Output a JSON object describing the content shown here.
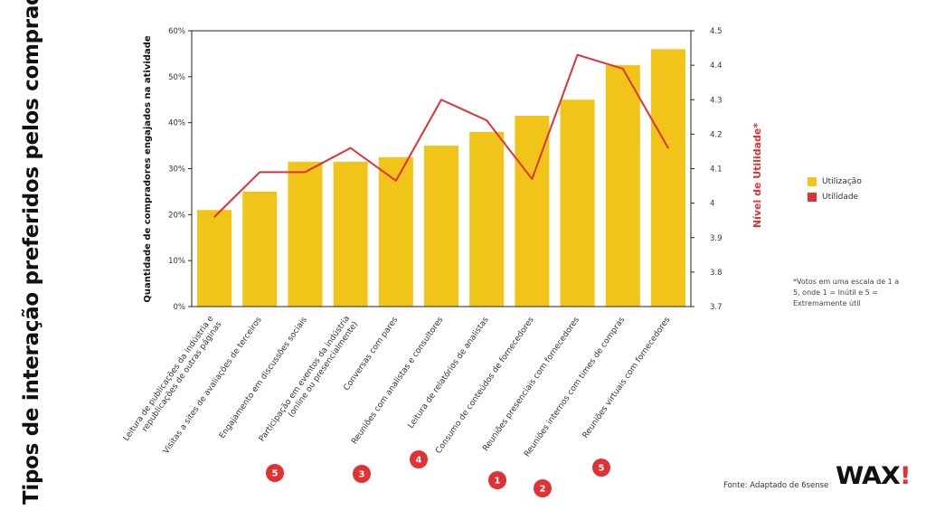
{
  "page": {
    "title": "Tipos de interação preferidos pelos compradores",
    "footnote": "*Votos em uma escala de 1 a 5, onde 1 = Inútil e 5 = Extremamente útil",
    "source": "Fonte: Adaptado de 6sense",
    "logo_text": "WAX",
    "logo_mark": "!"
  },
  "chart_data": {
    "type": "bar",
    "categories": [
      "Leitura de publicações da indústria e republicações de outras páginas",
      "Visitas a sites de avaliações de terceiros",
      "Engajamento em discussões sociais",
      "Participação em eventos da indústria (online ou presencialmente)",
      "Conversas com pares",
      "Reuniões com analistas e consultores",
      "Leitura de relatórios de analistas",
      "Consumo de conteúdos de fornecedores",
      "Reuniões presenciais com fornecedores",
      "Reuniões internos com times de compras",
      "Reuniões virtuais com fornecedores"
    ],
    "series": [
      {
        "name": "Utilização",
        "type": "bar",
        "axis": "left",
        "color": "#f0c419",
        "values": [
          21,
          25,
          31.5,
          31.5,
          32.5,
          35,
          38,
          41.5,
          45,
          52.5,
          56
        ]
      },
      {
        "name": "Utilidade",
        "type": "line",
        "axis": "right",
        "color": "#e03133",
        "values": [
          3.96,
          4.09,
          4.09,
          4.16,
          4.065,
          4.3,
          4.24,
          4.07,
          4.43,
          4.39,
          4.16
        ]
      }
    ],
    "ylabel": "Quantidade de compradores engajados na atividade",
    "y2label": "Nível de Utilidade*",
    "ylim": [
      0,
      60
    ],
    "y2lim": [
      3.7,
      4.5
    ],
    "yticks": [
      "0%",
      "10%",
      "20%",
      "30%",
      "40%",
      "50%",
      "60%"
    ],
    "y2ticks": [
      "3.7",
      "3.8",
      "3.9",
      "4",
      "4.1",
      "4.2",
      "4.3",
      "4.4",
      "4.5"
    ],
    "rank_badges": [
      {
        "category_index": 1,
        "label": "5"
      },
      {
        "category_index": 3,
        "label": "3"
      },
      {
        "category_index": 5,
        "label": "4"
      },
      {
        "category_index": 7,
        "label": "1"
      },
      {
        "category_index": 8,
        "label": "2"
      },
      {
        "category_index": 9,
        "label": "5"
      }
    ],
    "legend_position": "right",
    "grid": false
  }
}
